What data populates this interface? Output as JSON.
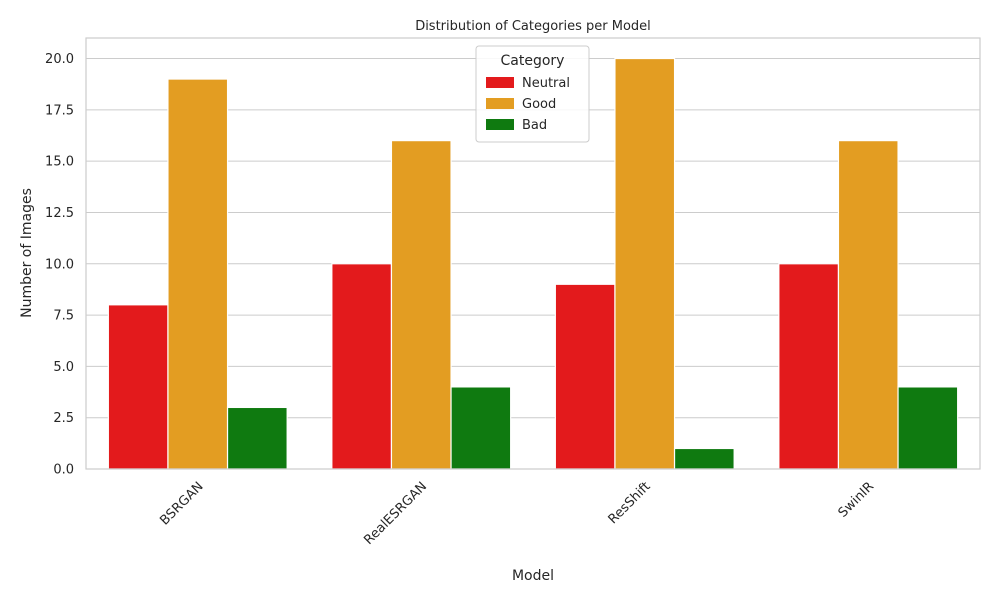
{
  "chart_data": {
    "type": "bar",
    "title": "Distribution of Categories per Model",
    "xlabel": "Model",
    "ylabel": "Number of Images",
    "categories": [
      "BSRGAN",
      "RealESRGAN",
      "ResShift",
      "SwinIR"
    ],
    "series": [
      {
        "name": "Neutral",
        "color": "#e31a1c",
        "values": [
          8,
          10,
          9,
          10
        ]
      },
      {
        "name": "Good",
        "color": "#e39d22",
        "values": [
          19,
          16,
          20,
          16
        ]
      },
      {
        "name": "Bad",
        "color": "#0f7a10",
        "values": [
          3,
          4,
          1,
          4
        ]
      }
    ],
    "ylim": [
      0,
      21
    ],
    "yticks": [
      0.0,
      2.5,
      5.0,
      7.5,
      10.0,
      12.5,
      15.0,
      17.5,
      20.0
    ],
    "ytick_labels": [
      "0.0",
      "2.5",
      "5.0",
      "7.5",
      "10.0",
      "12.5",
      "15.0",
      "17.5",
      "20.0"
    ],
    "grid": true,
    "legend": {
      "title": "Category",
      "placement": "top-center"
    },
    "xtick_rotation_deg": 45
  }
}
